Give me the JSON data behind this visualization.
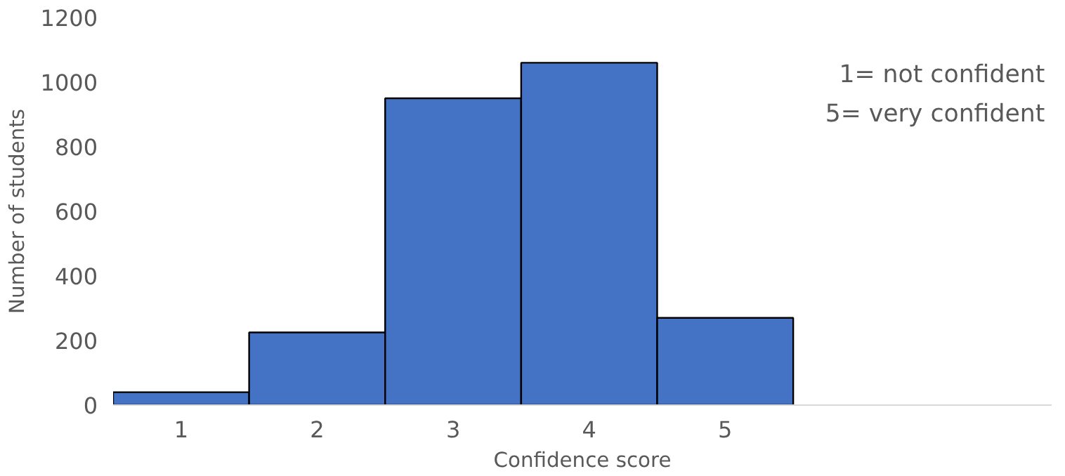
{
  "chart_data": {
    "type": "bar",
    "xlabel": "Confidence score",
    "ylabel": "Number of students",
    "categories": [
      "1",
      "2",
      "3",
      "4",
      "5"
    ],
    "values": [
      40,
      225,
      950,
      1060,
      270
    ],
    "color": "#4472c4",
    "ylim": [
      0,
      1200
    ],
    "yticks": [
      0,
      200,
      400,
      600,
      800,
      1000,
      1200
    ],
    "grid": false,
    "annotations": [
      "1= not confident\n5= very confident"
    ]
  }
}
